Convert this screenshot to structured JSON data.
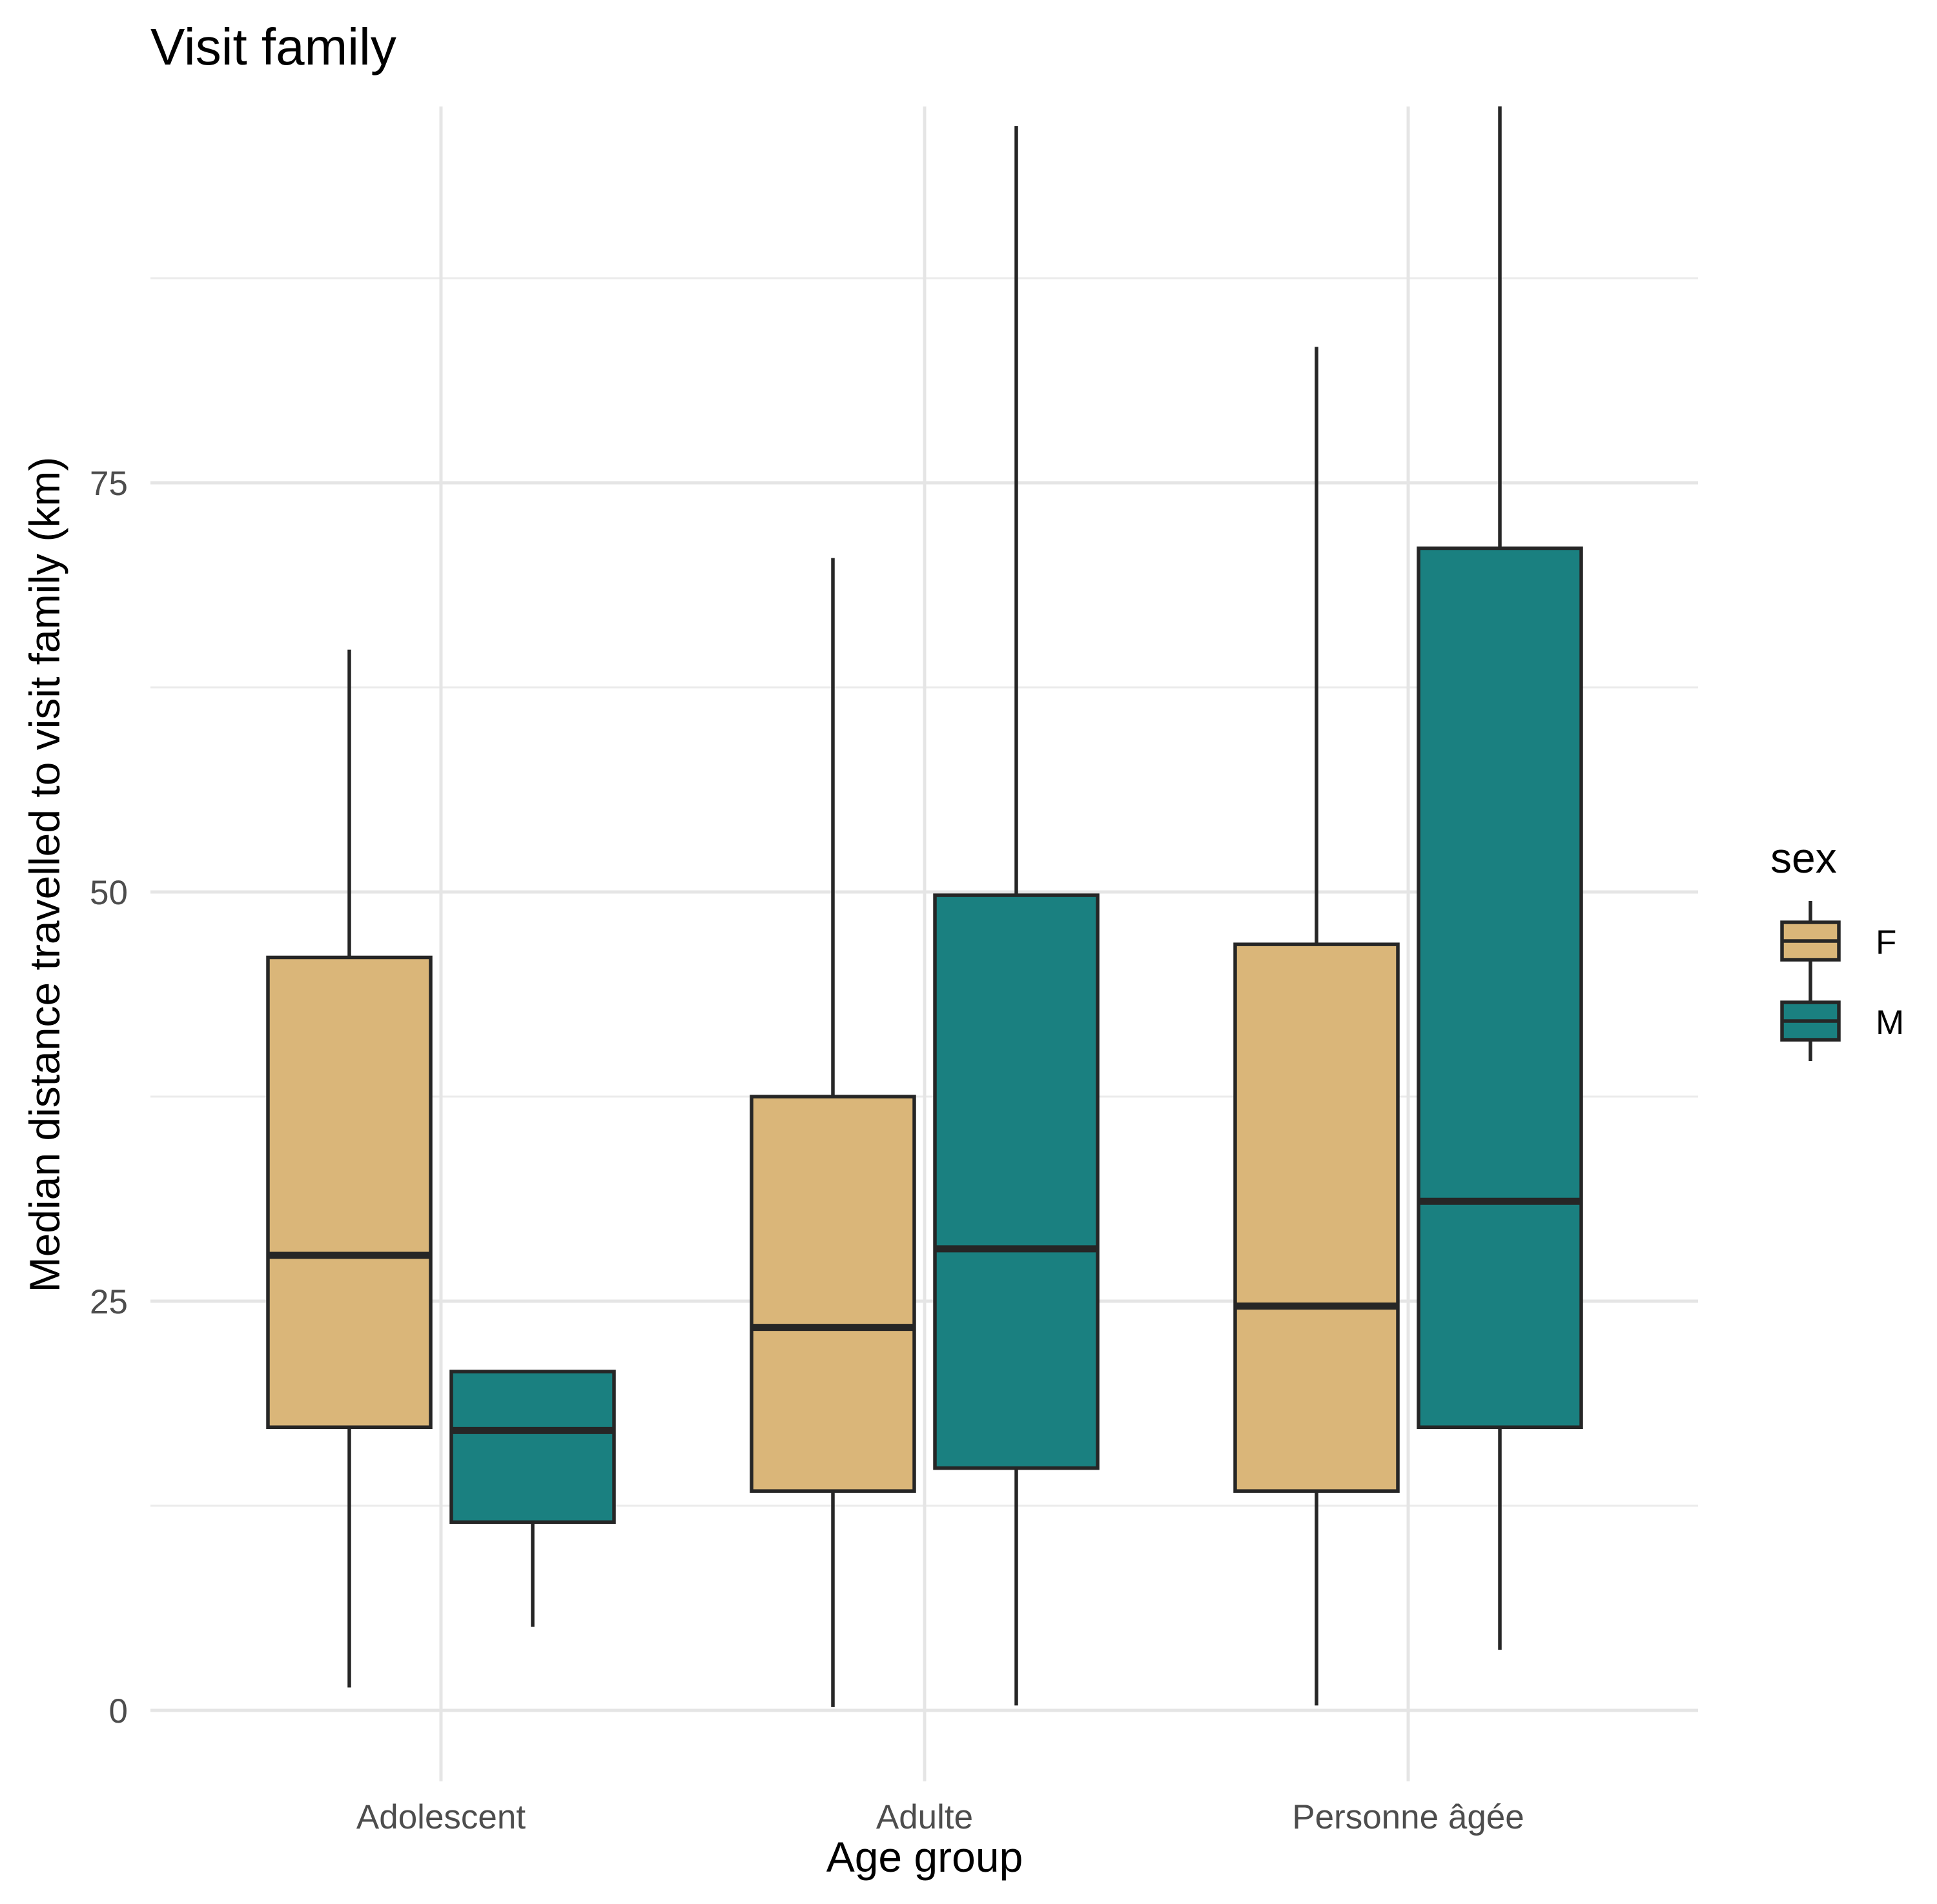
{
  "chart_data": {
    "type": "boxplot",
    "title": "Visit family",
    "xlabel": "Age group",
    "ylabel": "Median distance travelled to visit family (km)",
    "categories": [
      "Adolescent",
      "Adulte",
      "Personne âgée"
    ],
    "yticks": [
      0,
      25,
      50,
      75
    ],
    "ylim": [
      -4,
      98
    ],
    "grid": true,
    "legend": {
      "title": "sex",
      "position": "right",
      "entries": [
        {
          "name": "F",
          "color": "#DAB679"
        },
        {
          "name": "M",
          "color": "#1A8080"
        }
      ]
    },
    "series": [
      {
        "name": "F",
        "color": "#DAB679",
        "boxes": [
          {
            "category": "Adolescent",
            "low": 1.4,
            "q1": 17.3,
            "median": 27.8,
            "q3": 46.0,
            "high": 64.8
          },
          {
            "category": "Adulte",
            "low": 0.2,
            "q1": 13.4,
            "median": 23.4,
            "q3": 37.5,
            "high": 70.4
          },
          {
            "category": "Personne âgée",
            "low": 0.3,
            "q1": 13.4,
            "median": 24.7,
            "q3": 46.8,
            "high": 83.3
          }
        ]
      },
      {
        "name": "M",
        "color": "#1A8080",
        "boxes": [
          {
            "category": "Adolescent",
            "low": 5.1,
            "q1": 11.5,
            "median": 17.1,
            "q3": 20.7,
            "high": 20.8
          },
          {
            "category": "Adulte",
            "low": 0.3,
            "q1": 14.8,
            "median": 28.2,
            "q3": 49.8,
            "high": 96.8
          },
          {
            "category": "Personne âgée",
            "low": 3.7,
            "q1": 17.3,
            "median": 31.1,
            "q3": 71.0,
            "high": 98.0
          }
        ]
      }
    ]
  }
}
